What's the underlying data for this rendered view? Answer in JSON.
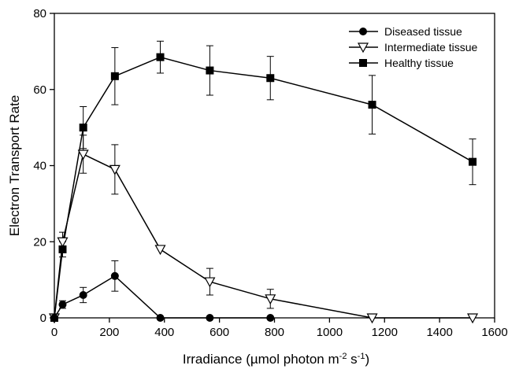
{
  "chart_data": {
    "type": "line",
    "xlabel": "Irradiance (µmol photon m",
    "xlabel_sup1": "-2",
    "xlabel_mid": " s",
    "xlabel_sup2": "-1",
    "xlabel_end": ")",
    "ylabel": "Electron Transport Rate",
    "xlim": [
      0,
      1600
    ],
    "ylim": [
      0,
      80
    ],
    "xticks": [
      0,
      200,
      400,
      600,
      800,
      1000,
      1200,
      1400,
      1600
    ],
    "yticks": [
      0,
      20,
      40,
      60,
      80
    ],
    "legend_position": "top-right",
    "series": [
      {
        "name": "Diseased tissue",
        "marker": "circle",
        "x": [
          0,
          30,
          105,
          220,
          385,
          565,
          785
        ],
        "y": [
          0,
          3.5,
          6,
          11,
          0,
          0,
          0
        ],
        "err": [
          0,
          1,
          2,
          4,
          0,
          0,
          0
        ]
      },
      {
        "name": "Intermediate tissue",
        "marker": "triangle-down",
        "x": [
          0,
          30,
          105,
          220,
          385,
          565,
          785,
          1155,
          1520
        ],
        "y": [
          0,
          20,
          43,
          39,
          18,
          9.5,
          5,
          0,
          0
        ],
        "err": [
          0,
          2.5,
          5,
          6.5,
          0,
          3.5,
          2.5,
          0,
          0
        ]
      },
      {
        "name": "Healthy tissue",
        "marker": "square",
        "x": [
          0,
          30,
          105,
          220,
          385,
          565,
          785,
          1155,
          1520
        ],
        "y": [
          0,
          18,
          50,
          63.5,
          68.5,
          65,
          63,
          56,
          41
        ],
        "err": [
          0,
          2,
          5.5,
          7.5,
          4.2,
          6.5,
          5.7,
          7.7,
          6
        ]
      }
    ]
  }
}
